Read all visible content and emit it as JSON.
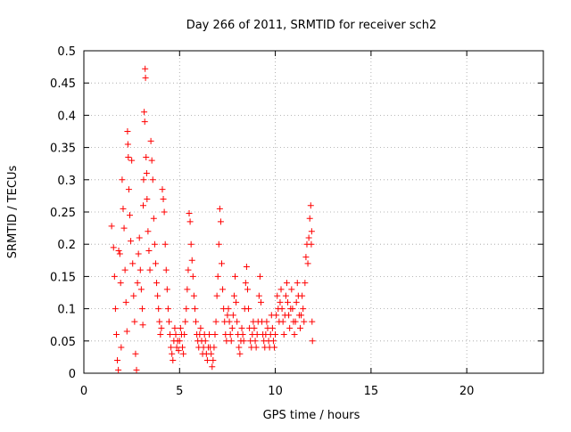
{
  "chart_data": {
    "type": "scatter",
    "title": "Day 266 of 2011, SRMTID for receiver sch2",
    "xlabel": "GPS time / hours",
    "ylabel": "SRMTID / TECUs",
    "xlim": [
      0,
      24
    ],
    "ylim": [
      0,
      0.5
    ],
    "x_ticks": [
      0,
      5,
      10,
      15,
      20
    ],
    "x_tick_labels": [
      "0",
      "5",
      "10",
      "15",
      "20"
    ],
    "y_ticks": [
      0,
      0.05,
      0.1,
      0.15,
      0.2,
      0.25,
      0.3,
      0.35,
      0.4,
      0.45,
      0.5
    ],
    "y_tick_labels": [
      "0",
      "0.05",
      "0.1",
      "0.15",
      "0.2",
      "0.25",
      "0.3",
      "0.35",
      "0.4",
      "0.45",
      "0.5"
    ],
    "grid": true,
    "marker": "+",
    "series": [
      {
        "color": "#ff0000",
        "points": [
          [
            1.45,
            0.228
          ],
          [
            1.55,
            0.195
          ],
          [
            1.6,
            0.15
          ],
          [
            1.65,
            0.1
          ],
          [
            1.7,
            0.06
          ],
          [
            1.75,
            0.02
          ],
          [
            1.8,
            0.005
          ],
          [
            1.82,
            0.19
          ],
          [
            1.88,
            0.185
          ],
          [
            1.92,
            0.14
          ],
          [
            1.95,
            0.04
          ],
          [
            2.0,
            0.3
          ],
          [
            2.05,
            0.255
          ],
          [
            2.1,
            0.225
          ],
          [
            2.15,
            0.16
          ],
          [
            2.2,
            0.11
          ],
          [
            2.25,
            0.065
          ],
          [
            2.28,
            0.375
          ],
          [
            2.3,
            0.355
          ],
          [
            2.32,
            0.335
          ],
          [
            2.35,
            0.285
          ],
          [
            2.4,
            0.245
          ],
          [
            2.45,
            0.205
          ],
          [
            2.5,
            0.33
          ],
          [
            2.55,
            0.17
          ],
          [
            2.6,
            0.12
          ],
          [
            2.65,
            0.08
          ],
          [
            2.7,
            0.03
          ],
          [
            2.75,
            0.005
          ],
          [
            2.8,
            0.14
          ],
          [
            2.85,
            0.185
          ],
          [
            2.9,
            0.21
          ],
          [
            2.95,
            0.16
          ],
          [
            3.0,
            0.13
          ],
          [
            3.05,
            0.1
          ],
          [
            3.08,
            0.075
          ],
          [
            3.1,
            0.26
          ],
          [
            3.12,
            0.3
          ],
          [
            3.15,
            0.405
          ],
          [
            3.18,
            0.39
          ],
          [
            3.2,
            0.472
          ],
          [
            3.22,
            0.458
          ],
          [
            3.25,
            0.335
          ],
          [
            3.28,
            0.31
          ],
          [
            3.3,
            0.27
          ],
          [
            3.35,
            0.22
          ],
          [
            3.4,
            0.19
          ],
          [
            3.45,
            0.16
          ],
          [
            3.5,
            0.36
          ],
          [
            3.55,
            0.33
          ],
          [
            3.6,
            0.3
          ],
          [
            3.65,
            0.24
          ],
          [
            3.7,
            0.2
          ],
          [
            3.75,
            0.17
          ],
          [
            3.8,
            0.14
          ],
          [
            3.85,
            0.12
          ],
          [
            3.9,
            0.1
          ],
          [
            3.95,
            0.08
          ],
          [
            4.0,
            0.06
          ],
          [
            4.05,
            0.07
          ],
          [
            4.1,
            0.285
          ],
          [
            4.15,
            0.27
          ],
          [
            4.2,
            0.25
          ],
          [
            4.25,
            0.2
          ],
          [
            4.3,
            0.16
          ],
          [
            4.35,
            0.13
          ],
          [
            4.4,
            0.1
          ],
          [
            4.45,
            0.08
          ],
          [
            4.5,
            0.06
          ],
          [
            4.55,
            0.04
          ],
          [
            4.6,
            0.03
          ],
          [
            4.65,
            0.02
          ],
          [
            4.7,
            0.05
          ],
          [
            4.75,
            0.07
          ],
          [
            4.8,
            0.06
          ],
          [
            4.85,
            0.04
          ],
          [
            4.9,
            0.05
          ],
          [
            4.95,
            0.035
          ],
          [
            5.0,
            0.05
          ],
          [
            5.05,
            0.07
          ],
          [
            5.1,
            0.06
          ],
          [
            5.15,
            0.04
          ],
          [
            5.2,
            0.03
          ],
          [
            5.25,
            0.06
          ],
          [
            5.3,
            0.08
          ],
          [
            5.35,
            0.1
          ],
          [
            5.4,
            0.13
          ],
          [
            5.45,
            0.16
          ],
          [
            5.5,
            0.248
          ],
          [
            5.55,
            0.235
          ],
          [
            5.6,
            0.2
          ],
          [
            5.65,
            0.175
          ],
          [
            5.7,
            0.15
          ],
          [
            5.75,
            0.12
          ],
          [
            5.8,
            0.1
          ],
          [
            5.85,
            0.08
          ],
          [
            5.9,
            0.06
          ],
          [
            5.95,
            0.05
          ],
          [
            6.0,
            0.04
          ],
          [
            6.05,
            0.06
          ],
          [
            6.1,
            0.07
          ],
          [
            6.15,
            0.05
          ],
          [
            6.2,
            0.03
          ],
          [
            6.25,
            0.04
          ],
          [
            6.3,
            0.06
          ],
          [
            6.35,
            0.05
          ],
          [
            6.4,
            0.03
          ],
          [
            6.45,
            0.02
          ],
          [
            6.5,
            0.04
          ],
          [
            6.55,
            0.06
          ],
          [
            6.6,
            0.04
          ],
          [
            6.65,
            0.03
          ],
          [
            6.7,
            0.01
          ],
          [
            6.75,
            0.02
          ],
          [
            6.8,
            0.04
          ],
          [
            6.85,
            0.06
          ],
          [
            6.9,
            0.08
          ],
          [
            6.95,
            0.12
          ],
          [
            7.0,
            0.15
          ],
          [
            7.05,
            0.2
          ],
          [
            7.1,
            0.255
          ],
          [
            7.15,
            0.235
          ],
          [
            7.2,
            0.17
          ],
          [
            7.25,
            0.13
          ],
          [
            7.3,
            0.1
          ],
          [
            7.35,
            0.08
          ],
          [
            7.4,
            0.06
          ],
          [
            7.45,
            0.05
          ],
          [
            7.5,
            0.09
          ],
          [
            7.55,
            0.1
          ],
          [
            7.6,
            0.08
          ],
          [
            7.65,
            0.06
          ],
          [
            7.7,
            0.05
          ],
          [
            7.75,
            0.07
          ],
          [
            7.8,
            0.09
          ],
          [
            7.85,
            0.12
          ],
          [
            7.9,
            0.15
          ],
          [
            7.95,
            0.11
          ],
          [
            8.0,
            0.08
          ],
          [
            8.05,
            0.06
          ],
          [
            8.1,
            0.04
          ],
          [
            8.15,
            0.03
          ],
          [
            8.2,
            0.05
          ],
          [
            8.25,
            0.07
          ],
          [
            8.3,
            0.06
          ],
          [
            8.35,
            0.05
          ],
          [
            8.4,
            0.1
          ],
          [
            8.45,
            0.14
          ],
          [
            8.5,
            0.165
          ],
          [
            8.55,
            0.13
          ],
          [
            8.6,
            0.1
          ],
          [
            8.65,
            0.07
          ],
          [
            8.7,
            0.05
          ],
          [
            8.75,
            0.04
          ],
          [
            8.8,
            0.06
          ],
          [
            8.85,
            0.08
          ],
          [
            8.9,
            0.07
          ],
          [
            8.95,
            0.05
          ],
          [
            9.0,
            0.04
          ],
          [
            9.05,
            0.06
          ],
          [
            9.1,
            0.08
          ],
          [
            9.15,
            0.12
          ],
          [
            9.2,
            0.15
          ],
          [
            9.25,
            0.11
          ],
          [
            9.3,
            0.08
          ],
          [
            9.35,
            0.06
          ],
          [
            9.4,
            0.05
          ],
          [
            9.45,
            0.04
          ],
          [
            9.5,
            0.06
          ],
          [
            9.55,
            0.08
          ],
          [
            9.6,
            0.07
          ],
          [
            9.65,
            0.05
          ],
          [
            9.7,
            0.04
          ],
          [
            9.75,
            0.06
          ],
          [
            9.8,
            0.09
          ],
          [
            9.85,
            0.07
          ],
          [
            9.9,
            0.05
          ],
          [
            9.95,
            0.04
          ],
          [
            10.0,
            0.06
          ],
          [
            10.05,
            0.09
          ],
          [
            10.1,
            0.12
          ],
          [
            10.15,
            0.1
          ],
          [
            10.2,
            0.08
          ],
          [
            10.25,
            0.11
          ],
          [
            10.3,
            0.13
          ],
          [
            10.35,
            0.1
          ],
          [
            10.4,
            0.08
          ],
          [
            10.45,
            0.06
          ],
          [
            10.5,
            0.09
          ],
          [
            10.55,
            0.12
          ],
          [
            10.6,
            0.14
          ],
          [
            10.65,
            0.11
          ],
          [
            10.7,
            0.09
          ],
          [
            10.75,
            0.07
          ],
          [
            10.8,
            0.1
          ],
          [
            10.85,
            0.13
          ],
          [
            10.9,
            0.1
          ],
          [
            10.95,
            0.08
          ],
          [
            11.0,
            0.06
          ],
          [
            11.05,
            0.08
          ],
          [
            11.1,
            0.11
          ],
          [
            11.15,
            0.14
          ],
          [
            11.2,
            0.12
          ],
          [
            11.25,
            0.09
          ],
          [
            11.3,
            0.07
          ],
          [
            11.35,
            0.09
          ],
          [
            11.4,
            0.12
          ],
          [
            11.45,
            0.1
          ],
          [
            11.5,
            0.08
          ],
          [
            11.55,
            0.14
          ],
          [
            11.6,
            0.18
          ],
          [
            11.65,
            0.2
          ],
          [
            11.7,
            0.17
          ],
          [
            11.75,
            0.21
          ],
          [
            11.8,
            0.24
          ],
          [
            11.85,
            0.26
          ],
          [
            11.88,
            0.2
          ],
          [
            11.9,
            0.22
          ],
          [
            11.92,
            0.08
          ],
          [
            11.94,
            0.05
          ]
        ]
      }
    ]
  }
}
